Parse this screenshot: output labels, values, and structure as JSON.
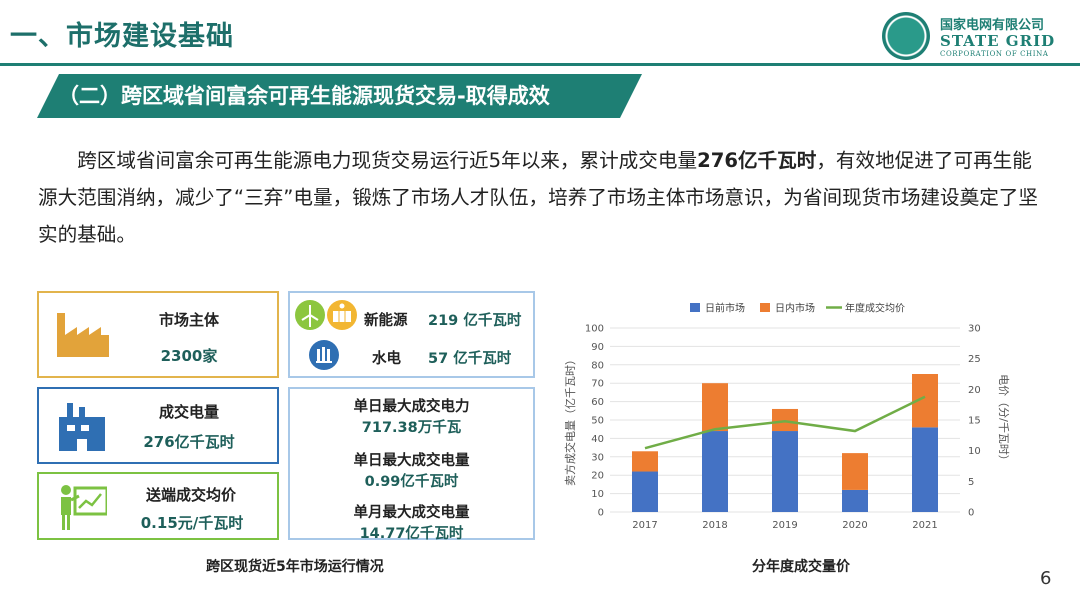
{
  "header": {
    "title": "一、市场建设基础",
    "logo_cn": "国家电网有限公司",
    "logo_en": "STATE GRID",
    "logo_en_sub": "CORPORATION OF CHINA"
  },
  "subtitle": "（二）跨区域省间富余可再生能源现货交易-取得成效",
  "paragraph": {
    "before": "跨区域省间富余可再生能源电力现货交易运行近5年以来，累计成交电量",
    "bold": "276亿千瓦时",
    "after": "，有效地促进了可再生能源大范围消纳，减少了“三弃”电量，锻炼了市场人才队伍，培养了市场主体市场意识，为省间现货市场建设奠定了坚实的基础。"
  },
  "cards": {
    "market_entities": {
      "label": "市场主体",
      "value": "2300家",
      "icon": "factory-icon",
      "color": "#e2a33a"
    },
    "traded_energy": {
      "label": "成交电量",
      "value": "276亿千瓦时",
      "icon": "building-icon",
      "color": "#2f6fb3"
    },
    "avg_price": {
      "label": "送端成交均价",
      "value": "0.15元/千瓦时",
      "icon": "presenter-icon",
      "color": "#7cc242"
    },
    "new_energy": {
      "label": "新能源",
      "value": "219 亿千瓦时",
      "icon": "wind-solar-icon"
    },
    "hydro": {
      "label": "水电",
      "value": "57 亿千瓦时",
      "icon": "hydro-dam-icon"
    },
    "records": [
      {
        "label": "单日最大成交电力",
        "value": "717.38万千瓦"
      },
      {
        "label": "单日最大成交电量",
        "value": "0.99亿千瓦时"
      },
      {
        "label": "单月最大成交电量",
        "value": "14.77亿千瓦时"
      }
    ]
  },
  "captions": {
    "left": "跨区现货近5年市场运行情况",
    "right": "分年度成交量价"
  },
  "page_number": "6",
  "chart_data": {
    "type": "bar",
    "categories": [
      "2017",
      "2018",
      "2019",
      "2020",
      "2021"
    ],
    "series": [
      {
        "name": "日前市场",
        "kind": "bar",
        "axis": "left",
        "color": "#4472c4",
        "values": [
          22,
          44,
          44,
          12,
          46
        ]
      },
      {
        "name": "日内市场",
        "kind": "bar",
        "axis": "left",
        "color": "#ed7d31",
        "values": [
          11,
          26,
          12,
          20,
          29
        ]
      },
      {
        "name": "年度成交均价",
        "kind": "line",
        "axis": "right",
        "color": "#70ad47",
        "values": [
          10.4,
          13.5,
          14.8,
          13.2,
          18.8
        ]
      }
    ],
    "stacked": true,
    "ylabel": "卖方成交电量（亿千瓦时）",
    "y2label": "电价（分/千瓦时）",
    "ylim": [
      0,
      100
    ],
    "yticks": [
      0,
      10,
      20,
      30,
      40,
      50,
      60,
      70,
      80,
      90,
      100
    ],
    "y2lim": [
      0,
      30
    ],
    "y2ticks": [
      0,
      5,
      10,
      15,
      20,
      25,
      30
    ],
    "grid": true,
    "legend_position": "top"
  }
}
